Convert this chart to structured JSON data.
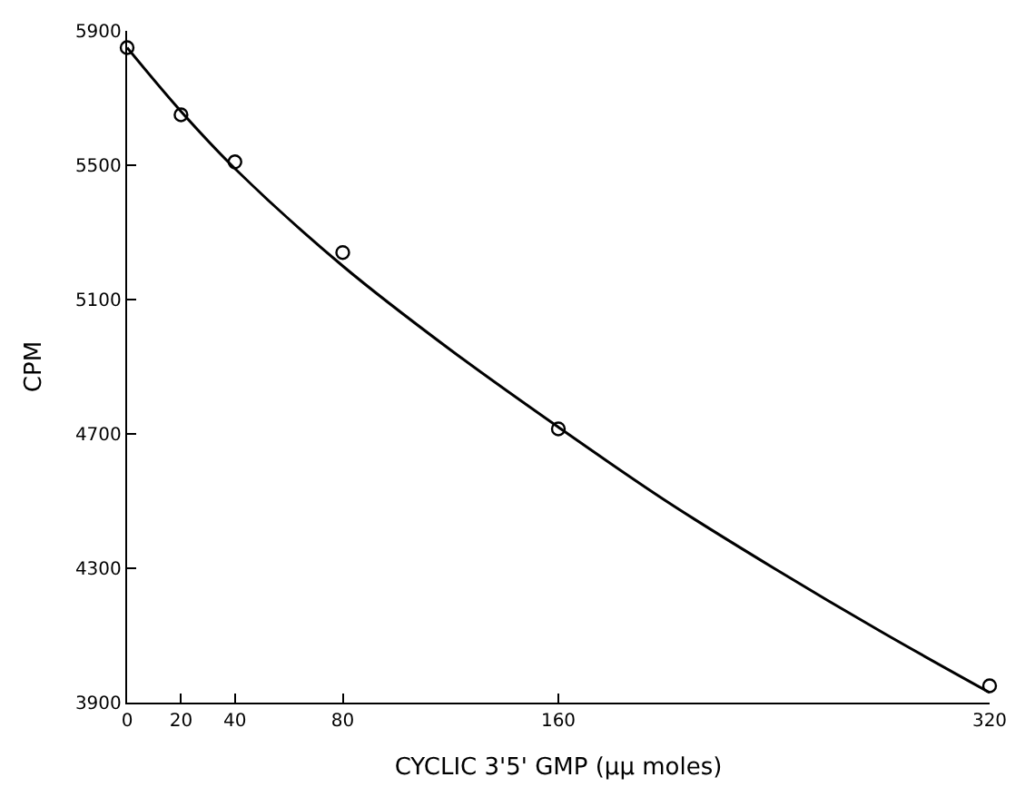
{
  "chart_data": {
    "type": "scatter",
    "xlabel": "CYCLIC 3'5' GMP (μμ moles)",
    "ylabel": "CPM",
    "xlim": [
      0,
      320
    ],
    "ylim": [
      3900,
      5900
    ],
    "xticks": [
      0,
      20,
      40,
      80,
      160,
      320
    ],
    "yticks": [
      3900,
      4300,
      4700,
      5100,
      5500,
      5900
    ],
    "series": [
      {
        "marker": "circle",
        "color": "#000000",
        "x": [
          0,
          20,
          40,
          80,
          160,
          320
        ],
        "values": [
          5850,
          5650,
          5510,
          5240,
          4715,
          3950
        ]
      },
      {
        "type": "line",
        "marker": "none",
        "line_style": "solid",
        "color": "#000000",
        "x": [
          0,
          20,
          40,
          80,
          120,
          160,
          200,
          240,
          280,
          320
        ],
        "values": [
          5850,
          5660,
          5490,
          5200,
          4950,
          4720,
          4500,
          4300,
          4110,
          3930
        ]
      }
    ]
  }
}
